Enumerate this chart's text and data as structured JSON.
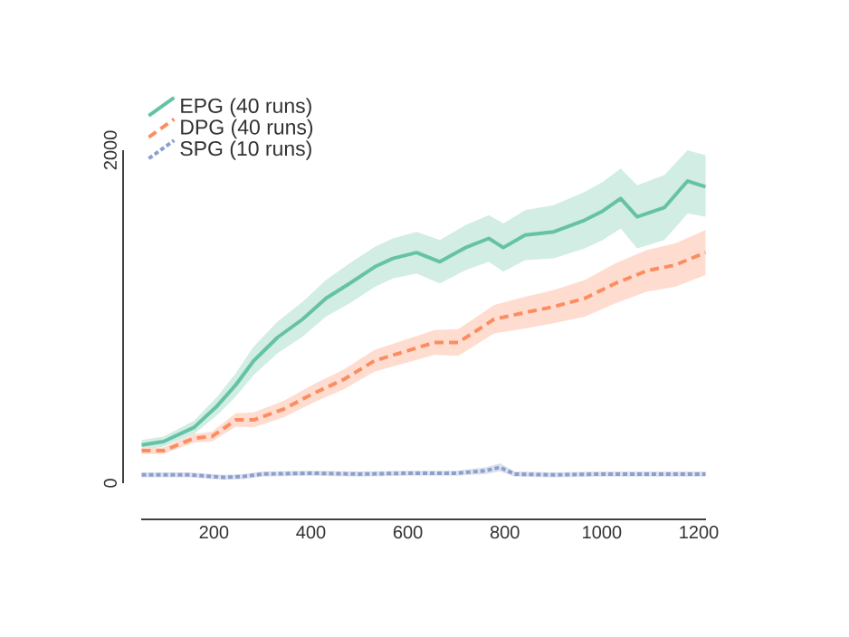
{
  "chart_data": {
    "type": "line",
    "xlim": [
      50,
      1215
    ],
    "ylim": [
      0,
      2000
    ],
    "xticks": [
      200,
      400,
      600,
      800,
      1000,
      1200
    ],
    "yticks": [
      0,
      2000
    ],
    "grid": false,
    "legend": "top left",
    "series": [
      {
        "name": "EPG (40 runs)",
        "color": "#66c2a5",
        "line_style": "solid",
        "x": [
          51,
          96,
          159,
          207,
          245,
          282,
          331,
          383,
          431,
          480,
          532,
          569,
          618,
          666,
          719,
          767,
          797,
          842,
          901,
          965,
          1002,
          1039,
          1073,
          1129,
          1177,
          1214
        ],
        "values": [
          230,
          250,
          335,
          465,
          590,
          735,
          875,
          985,
          1110,
          1200,
          1300,
          1350,
          1385,
          1330,
          1415,
          1470,
          1415,
          1490,
          1510,
          1580,
          1635,
          1710,
          1600,
          1655,
          1815,
          1780
        ],
        "lower": [
          200,
          220,
          295,
          410,
          520,
          650,
          780,
          880,
          1000,
          1080,
          1180,
          1230,
          1260,
          1200,
          1280,
          1330,
          1270,
          1340,
          1350,
          1410,
          1460,
          1530,
          1410,
          1460,
          1620,
          1600
        ],
        "upper": [
          260,
          280,
          375,
          520,
          660,
          820,
          970,
          1090,
          1220,
          1320,
          1420,
          1470,
          1510,
          1460,
          1550,
          1610,
          1560,
          1640,
          1670,
          1750,
          1810,
          1890,
          1790,
          1850,
          2000,
          1970
        ]
      },
      {
        "name": "DPG (40 runs)",
        "color": "#fc8d62",
        "line_style": "dashed",
        "x": [
          51,
          96,
          159,
          196,
          245,
          282,
          344,
          406,
          469,
          531,
          593,
          655,
          704,
          778,
          842,
          901,
          965,
          1028,
          1092,
          1151,
          1214
        ],
        "values": [
          195,
          195,
          270,
          280,
          380,
          380,
          445,
          540,
          625,
          735,
          790,
          845,
          845,
          985,
          1025,
          1060,
          1110,
          1200,
          1275,
          1310,
          1385
        ],
        "lower": [
          175,
          175,
          245,
          250,
          340,
          335,
          395,
          485,
          565,
          670,
          720,
          770,
          765,
          900,
          930,
          960,
          1000,
          1080,
          1150,
          1180,
          1250
        ],
        "upper": [
          215,
          215,
          295,
          310,
          420,
          425,
          495,
          595,
          685,
          800,
          860,
          920,
          925,
          1070,
          1120,
          1160,
          1220,
          1320,
          1400,
          1440,
          1520
        ]
      },
      {
        "name": "SPG (10 runs)",
        "color": "#8da0cb",
        "line_style": "dotted",
        "x": [
          51,
          150,
          220,
          260,
          300,
          400,
          500,
          600,
          700,
          760,
          790,
          820,
          900,
          1000,
          1100,
          1214
        ],
        "values": [
          50,
          50,
          35,
          40,
          55,
          60,
          55,
          60,
          60,
          75,
          95,
          55,
          50,
          55,
          55,
          55
        ],
        "lower": [
          35,
          35,
          20,
          25,
          40,
          45,
          40,
          45,
          45,
          55,
          70,
          40,
          35,
          40,
          40,
          40
        ],
        "upper": [
          65,
          65,
          50,
          55,
          70,
          75,
          70,
          75,
          75,
          95,
          120,
          70,
          65,
          70,
          70,
          70
        ]
      }
    ]
  }
}
